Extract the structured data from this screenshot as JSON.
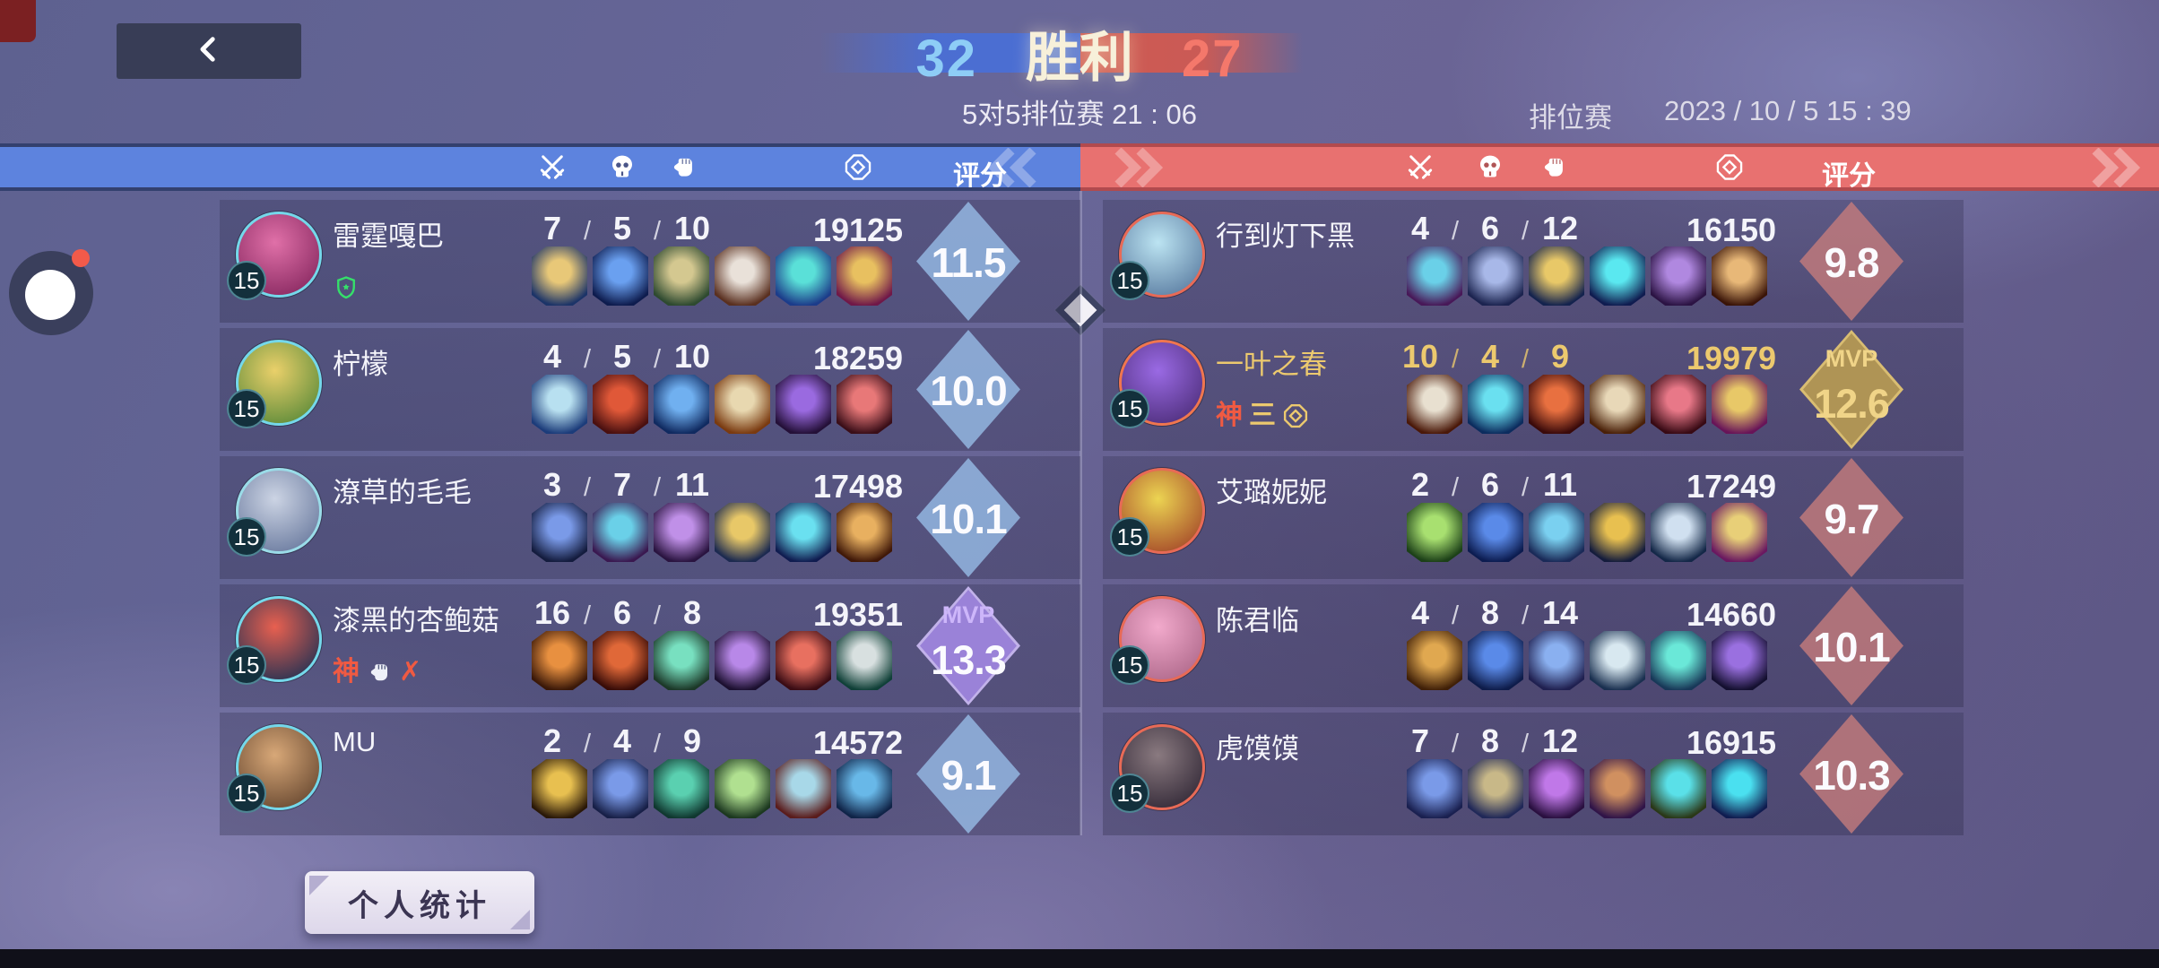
{
  "topbar": {
    "score_left": "32",
    "result_label": "胜利",
    "score_right": "27",
    "subtitle": "5对5排位赛 21 : 06",
    "mode_label": "排位赛",
    "datetime": "2023 / 10 / 5  15 : 39"
  },
  "scoreboard": {
    "rating_label": "评分",
    "mvp_label": "MVP",
    "column_icons": {
      "kills": "crossed-swords-icon",
      "deaths": "skull-icon",
      "assists": "fist-icon",
      "gold": "coin-icon"
    }
  },
  "teams": {
    "left": {
      "accent": "#5d83de",
      "players": [
        {
          "name": "雷霆嘎巴",
          "level": "15",
          "kda": "7 / 5 / 10",
          "gold": "19125",
          "rating": "11.5",
          "mvp": false,
          "highlight": false,
          "badges": [
            {
              "icon": "shield",
              "color": "#35e06a"
            }
          ],
          "avatar": [
            "#e070a8",
            "#8a2a62"
          ],
          "ring": "#74d8ea",
          "items": [
            [
              "#e8c878",
              "#1c3468"
            ],
            [
              "#6aa0f0",
              "#0e1c4e"
            ],
            [
              "#d4c890",
              "#2e4a30"
            ],
            [
              "#e9e1d9",
              "#5a3020"
            ],
            [
              "#5ae0d8",
              "#1c3c8a"
            ],
            [
              "#e8c060",
              "#701848"
            ]
          ]
        },
        {
          "name": "柠檬",
          "level": "15",
          "kda": "4 / 5 / 10",
          "gold": "18259",
          "rating": "10.0",
          "mvp": false,
          "highlight": false,
          "badges": [],
          "avatar": [
            "#ead06a",
            "#5f8c3a"
          ],
          "ring": "#74d8ea",
          "items": [
            [
              "#b8e0f0",
              "#1c3c7a"
            ],
            [
              "#e05838",
              "#4a1010"
            ],
            [
              "#70b0f0",
              "#102a60"
            ],
            [
              "#e8d8b0",
              "#7a3a10"
            ],
            [
              "#9a6ae0",
              "#241038"
            ],
            [
              "#e87878",
              "#3a0e18"
            ]
          ]
        },
        {
          "name": "潦草的毛毛",
          "level": "15",
          "kda": "3 / 7 / 11",
          "gold": "17498",
          "rating": "10.1",
          "mvp": false,
          "highlight": false,
          "badges": [],
          "avatar": [
            "#ccd4e4",
            "#6c7ca0"
          ],
          "ring": "#9adce8",
          "items": [
            [
              "#7a9ae8",
              "#141c3e"
            ],
            [
              "#6ad0e8",
              "#3a1850"
            ],
            [
              "#c090e8",
              "#2a1440"
            ],
            [
              "#e8c868",
              "#1c2a50"
            ],
            [
              "#6ae0f0",
              "#101c50"
            ],
            [
              "#e8b060",
              "#401808"
            ]
          ]
        },
        {
          "name": "漆黑的杏鲍菇",
          "level": "15",
          "kda": "16 / 6 / 8",
          "gold": "19351",
          "rating": "13.3",
          "mvp": true,
          "highlight": false,
          "badges": [
            {
              "glyph": "神",
              "color": "#f05a42"
            },
            {
              "icon": "fist",
              "color": "#eef0f8"
            },
            {
              "glyph": "✗",
              "color": "#f05a42"
            }
          ],
          "avatar": [
            "#e86050",
            "#273252"
          ],
          "ring": "#74d8ea",
          "items": [
            [
              "#e89040",
              "#3a1808"
            ],
            [
              "#e06838",
              "#380c08"
            ],
            [
              "#78e0c0",
              "#1c3828"
            ],
            [
              "#b888e8",
              "#1c1030"
            ],
            [
              "#e87060",
              "#3a0c14"
            ],
            [
              "#d8e0e0",
              "#104038"
            ]
          ]
        },
        {
          "name": "MU",
          "level": "15",
          "kda": "2 / 4 / 9",
          "gold": "14572",
          "rating": "9.1",
          "mvp": false,
          "highlight": false,
          "badges": [],
          "avatar": [
            "#d8a878",
            "#6a4a32"
          ],
          "ring": "#74d8ea",
          "items": [
            [
              "#e8c050",
              "#2a1808"
            ],
            [
              "#7a9ae8",
              "#182048"
            ],
            [
              "#5ad0b0",
              "#103830"
            ],
            [
              "#b0e090",
              "#1c3820"
            ],
            [
              "#a8d8e8",
              "#5a1c1c"
            ],
            [
              "#68b8e8",
              "#102448"
            ]
          ]
        }
      ]
    },
    "right": {
      "accent": "#e87170",
      "players": [
        {
          "name": "行到灯下黑",
          "level": "15",
          "kda": "4 / 6 / 12",
          "gold": "16150",
          "rating": "9.8",
          "mvp": false,
          "highlight": false,
          "badges": [],
          "avatar": [
            "#bce4f2",
            "#5e80a4"
          ],
          "ring": "#e86a56",
          "items": [
            [
              "#6ad0e8",
              "#481858"
            ],
            [
              "#a8b8e8",
              "#1c2450"
            ],
            [
              "#e8c868",
              "#14234e"
            ],
            [
              "#5ae8f0",
              "#101c50"
            ],
            [
              "#b088e0",
              "#2c1444"
            ],
            [
              "#e8b878",
              "#3a1408"
            ]
          ]
        },
        {
          "name": "一叶之春",
          "level": "15",
          "kda": "10 / 4 / 9",
          "gold": "19979",
          "rating": "12.6",
          "mvp": true,
          "highlight": true,
          "badges": [
            {
              "glyph": "神",
              "color": "#f05a42"
            },
            {
              "glyph": "三",
              "color": "#ecc96e"
            },
            {
              "icon": "coin",
              "color": "#ecc96e"
            }
          ],
          "avatar": [
            "#9a6ae4",
            "#50307e"
          ],
          "ring": "#f0764e",
          "items": [
            [
              "#e8e0d0",
              "#4a1808"
            ],
            [
              "#6ae0f0",
              "#0c2c5e"
            ],
            [
              "#e87040",
              "#3a0a0a"
            ],
            [
              "#e8d8b8",
              "#4a2008"
            ],
            [
              "#e87888",
              "#380a14"
            ],
            [
              "#e8c868",
              "#681458"
            ]
          ]
        },
        {
          "name": "艾璐妮妮",
          "level": "15",
          "kda": "2 / 6 / 11",
          "gold": "17249",
          "rating": "9.7",
          "mvp": false,
          "highlight": false,
          "badges": [],
          "avatar": [
            "#ecd452",
            "#a64c2a"
          ],
          "ring": "#e86a56",
          "items": [
            [
              "#a8e070",
              "#1c4018"
            ],
            [
              "#5a8ae8",
              "#0c1c50"
            ],
            [
              "#7ad0f0",
              "#1a2a58"
            ],
            [
              "#e8c050",
              "#141c3c"
            ],
            [
              "#d0e0f0",
              "#142848"
            ],
            [
              "#e8cf78",
              "#6a1860"
            ]
          ]
        },
        {
          "name": "陈君临",
          "level": "15",
          "kda": "4 / 8 / 14",
          "gold": "14660",
          "rating": "10.1",
          "mvp": false,
          "highlight": false,
          "badges": [],
          "avatar": [
            "#f2aacc",
            "#b06a8c"
          ],
          "ring": "#e86a56",
          "items": [
            [
              "#e0a850",
              "#402008"
            ],
            [
              "#5a8ae8",
              "#0e1c4a"
            ],
            [
              "#8ab0f0",
              "#202050"
            ],
            [
              "#d8e8f0",
              "#1a3050"
            ],
            [
              "#6ae8d8",
              "#183858"
            ],
            [
              "#9a70e0",
              "#141030"
            ]
          ]
        },
        {
          "name": "虎馍馍",
          "level": "15",
          "kda": "7 / 8 / 12",
          "gold": "16915",
          "rating": "10.3",
          "mvp": false,
          "highlight": false,
          "badges": [],
          "avatar": [
            "#8a7a80",
            "#342a38"
          ],
          "ring": "#e86a56",
          "items": [
            [
              "#7a9ae8",
              "#1a2050"
            ],
            [
              "#c8b888",
              "#202858"
            ],
            [
              "#c078e8",
              "#2a1040"
            ],
            [
              "#d09060",
              "#301448"
            ],
            [
              "#5ae0e8",
              "#2a3818"
            ],
            [
              "#4ae0f0",
              "#101c50"
            ]
          ]
        }
      ]
    }
  },
  "footer": {
    "stats_button_label": "个人统计"
  }
}
